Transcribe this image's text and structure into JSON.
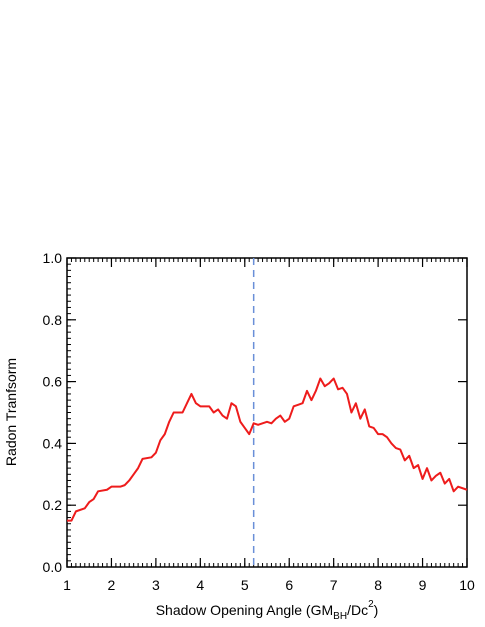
{
  "chart_data": {
    "type": "line",
    "ylabel": "Radon Tranfsorm",
    "xlabel_parts": [
      "Shadow Opening Angle (GM",
      "BH",
      "/Dc",
      "2",
      ")"
    ],
    "x": [
      1.0,
      1.1,
      1.2,
      1.4,
      1.5,
      1.6,
      1.7,
      1.9,
      2.0,
      2.2,
      2.3,
      2.4,
      2.5,
      2.6,
      2.7,
      2.9,
      3.0,
      3.1,
      3.2,
      3.3,
      3.4,
      3.6,
      3.7,
      3.8,
      3.9,
      4.0,
      4.2,
      4.3,
      4.4,
      4.5,
      4.6,
      4.7,
      4.8,
      4.9,
      5.0,
      5.1,
      5.2,
      5.3,
      5.5,
      5.6,
      5.7,
      5.8,
      5.9,
      6.0,
      6.1,
      6.2,
      6.3,
      6.4,
      6.5,
      6.6,
      6.7,
      6.8,
      6.9,
      7.0,
      7.1,
      7.2,
      7.3,
      7.4,
      7.5,
      7.6,
      7.7,
      7.8,
      7.9,
      8.0,
      8.1,
      8.2,
      8.3,
      8.4,
      8.5,
      8.6,
      8.7,
      8.8,
      8.9,
      9.0,
      9.1,
      9.2,
      9.3,
      9.4,
      9.5,
      9.6,
      9.7,
      9.8,
      10.0
    ],
    "series": [
      {
        "color": "#ee1c1c",
        "values": [
          0.15,
          0.15,
          0.18,
          0.19,
          0.21,
          0.22,
          0.245,
          0.25,
          0.26,
          0.26,
          0.265,
          0.28,
          0.3,
          0.32,
          0.35,
          0.355,
          0.37,
          0.41,
          0.43,
          0.47,
          0.5,
          0.5,
          0.53,
          0.56,
          0.53,
          0.52,
          0.52,
          0.5,
          0.51,
          0.49,
          0.48,
          0.53,
          0.52,
          0.47,
          0.45,
          0.43,
          0.465,
          0.46,
          0.47,
          0.465,
          0.48,
          0.49,
          0.47,
          0.48,
          0.52,
          0.525,
          0.53,
          0.57,
          0.54,
          0.57,
          0.61,
          0.585,
          0.595,
          0.61,
          0.575,
          0.58,
          0.56,
          0.5,
          0.53,
          0.48,
          0.51,
          0.455,
          0.45,
          0.43,
          0.43,
          0.42,
          0.4,
          0.385,
          0.38,
          0.345,
          0.36,
          0.32,
          0.33,
          0.285,
          0.32,
          0.28,
          0.295,
          0.305,
          0.27,
          0.285,
          0.245,
          0.26,
          0.25
        ]
      }
    ],
    "vline": {
      "x": 5.2,
      "color": "#6a8fd8"
    },
    "xlim": [
      1,
      10
    ],
    "xticks": [
      1,
      2,
      3,
      4,
      5,
      6,
      7,
      8,
      9,
      10
    ],
    "ylim": [
      0,
      1
    ],
    "yticks": [
      {
        "value": 0,
        "label": "0.0"
      },
      0.2,
      0.4,
      0.6,
      0.8,
      {
        "value": 1,
        "label": "1.0"
      }
    ]
  }
}
